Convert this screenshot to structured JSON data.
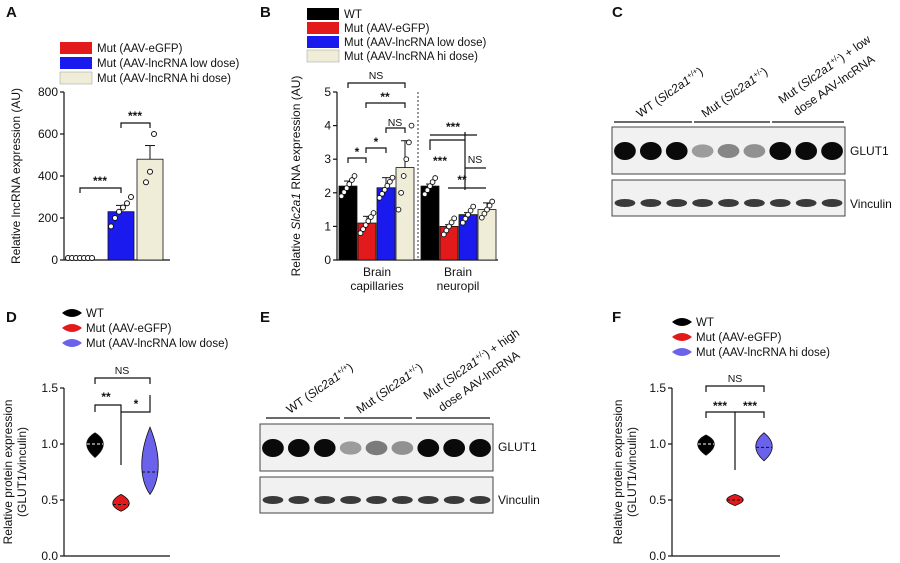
{
  "panels": {
    "a": {
      "letter": "A"
    },
    "b": {
      "letter": "B"
    },
    "c": {
      "letter": "C"
    },
    "d": {
      "letter": "D"
    },
    "e": {
      "letter": "E"
    },
    "f": {
      "letter": "F"
    }
  },
  "colors": {
    "wt": "#000000",
    "egfp": "#e31a1c",
    "low": "#1a1aee",
    "hi": "#efedd8",
    "violin_low": "#6a62ea"
  },
  "chart_data": [
    {
      "id": "A",
      "type": "bar",
      "ylabel": "Relative lncRNA expression (AU)",
      "ylim": [
        0,
        800
      ],
      "yticks": [
        "0",
        "200",
        "400",
        "600",
        "800"
      ],
      "legend": [
        "Mut (AAV-eGFP)",
        "Mut (AAV-lncRNA low dose)",
        "Mut (AAV-lncRNA hi dose)"
      ],
      "values": [
        0,
        230,
        480
      ],
      "errors": [
        2,
        30,
        65
      ],
      "points": [
        [
          0,
          0,
          0,
          0,
          0,
          0,
          0
        ],
        [
          160,
          200,
          230,
          250,
          270,
          300
        ],
        [
          370,
          420,
          600
        ]
      ],
      "significance": [
        "***",
        "***"
      ]
    },
    {
      "id": "B",
      "type": "bar",
      "ylabel_prefix": "Relative ",
      "ylabel_gene": "Slc2a1",
      "ylabel_suffix": " RNA expression (AU)",
      "ylim": [
        0,
        5
      ],
      "yticks": [
        "0",
        "1",
        "2",
        "3",
        "4",
        "5"
      ],
      "legend": [
        "WT",
        "Mut (AAV-eGFP)",
        "Mut (AAV-lncRNA low dose)",
        "Mut (AAV-lncRNA hi dose)"
      ],
      "categories": [
        [
          "Brain",
          "capillaries"
        ],
        [
          "Brain",
          "neuropil"
        ]
      ],
      "series": [
        {
          "values": [
            2.2,
            2.2
          ],
          "errors": [
            0.15,
            0.06
          ]
        },
        {
          "values": [
            1.1,
            1.0
          ],
          "errors": [
            0.2,
            0.05
          ]
        },
        {
          "values": [
            2.15,
            1.35
          ],
          "errors": [
            0.3,
            0.06
          ]
        },
        {
          "values": [
            2.75,
            1.5
          ],
          "errors": [
            0.8,
            0.2
          ]
        }
      ],
      "significance_capillaries": [
        "*",
        "*",
        "NS",
        "**",
        "NS"
      ],
      "significance_neuropil": [
        "***",
        "***",
        "NS",
        "**"
      ]
    },
    {
      "id": "D",
      "type": "violin",
      "ylabel": [
        "Relative protein expression",
        "(GLUT1/vinculin)"
      ],
      "ylim": [
        0,
        1.5
      ],
      "yticks": [
        "0.0",
        "0.5",
        "1.0",
        "1.5"
      ],
      "legend": [
        "WT",
        "Mut (AAV-eGFP)",
        "Mut (AAV-lncRNA low dose)"
      ],
      "ranges": [
        [
          0.88,
          1.1
        ],
        [
          0.4,
          0.55
        ],
        [
          0.55,
          1.15
        ]
      ],
      "medians": [
        1.0,
        0.46,
        0.75
      ],
      "significance": [
        "**",
        "*",
        "NS"
      ]
    },
    {
      "id": "F",
      "type": "violin",
      "ylabel": [
        "Relative protein expression",
        "(GLUT1/vinculin)"
      ],
      "ylim": [
        0,
        1.5
      ],
      "yticks": [
        "0.0",
        "0.5",
        "1.0",
        "1.5"
      ],
      "legend": [
        "WT",
        "Mut (AAV-eGFP)",
        "Mut (AAV-lncRNA hi dose)"
      ],
      "ranges": [
        [
          0.9,
          1.08
        ],
        [
          0.45,
          0.55
        ],
        [
          0.85,
          1.1
        ]
      ],
      "medians": [
        1.0,
        0.5,
        0.97
      ],
      "significance": [
        "***",
        "***",
        "NS"
      ]
    }
  ],
  "blots": {
    "c": {
      "groups": [
        {
          "prefix": "WT (",
          "gene": "Slc2a1",
          "sup": "+/+",
          "suffix": ")"
        },
        {
          "prefix": "Mut (",
          "gene": "Slc2a1",
          "sup": "+/-",
          "suffix": ")"
        },
        {
          "prefix": "Mut (",
          "gene": "Slc2a1",
          "sup": "+/-",
          "suffix": ") + low",
          "line2": "dose AAV-lncRNA"
        }
      ],
      "band1": "GLUT1",
      "band2": "Vinculin",
      "intensity": [
        1,
        1,
        1,
        0.35,
        0.45,
        0.4,
        1,
        1,
        1
      ]
    },
    "e": {
      "groups": [
        {
          "prefix": "WT (",
          "gene": "Slc2a1",
          "sup": "+/+",
          "suffix": ")"
        },
        {
          "prefix": "Mut (",
          "gene": "Slc2a1",
          "sup": "+/-",
          "suffix": ")"
        },
        {
          "prefix": "Mut (",
          "gene": "Slc2a1",
          "sup": "+/-",
          "suffix": ") + high",
          "line2": "dose AAV-lncRNA"
        }
      ],
      "band1": "GLUT1",
      "band2": "Vinculin",
      "intensity": [
        1,
        1,
        1,
        0.35,
        0.5,
        0.4,
        1,
        1,
        1
      ]
    }
  }
}
